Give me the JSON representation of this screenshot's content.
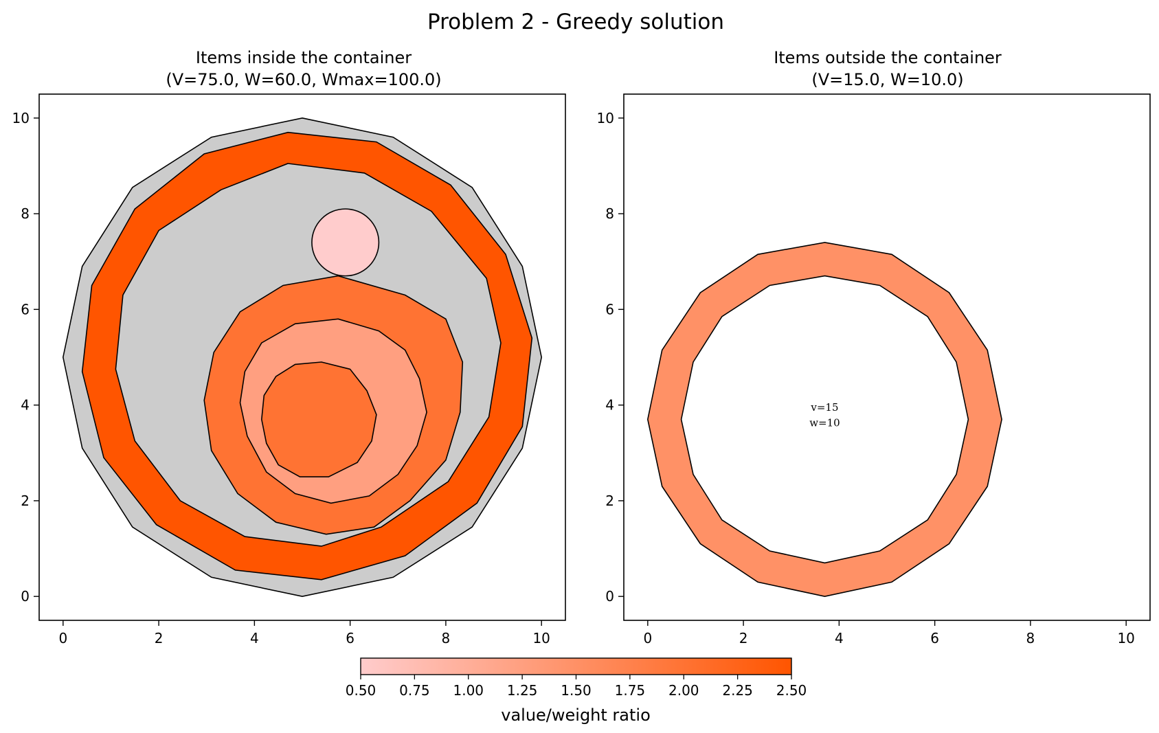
{
  "figure": {
    "suptitle": "Problem 2 - Greedy solution"
  },
  "colorbar": {
    "label": "value/weight ratio",
    "min": 0.5,
    "max": 2.5,
    "ticks": [
      "0.50",
      "0.75",
      "1.00",
      "1.25",
      "1.50",
      "1.75",
      "2.00",
      "2.25",
      "2.50"
    ],
    "colors": {
      "low": "#ffcccc",
      "high": "#ff5500"
    }
  },
  "chart_data": [
    {
      "type": "polygon-plot",
      "title_line1": "Items inside the container",
      "title_line2": "(V=75.0, W=60.0, Wmax=100.0)",
      "xlim": [
        -0.5,
        10.5
      ],
      "ylim": [
        -0.5,
        10.5
      ],
      "xticks": [
        "0",
        "2",
        "4",
        "6",
        "8",
        "10"
      ],
      "yticks": [
        "0",
        "2",
        "4",
        "6",
        "8",
        "10"
      ],
      "container": {
        "color": "#cccccc",
        "points": [
          [
            5.0,
            10.0
          ],
          [
            6.9,
            9.6
          ],
          [
            8.55,
            8.55
          ],
          [
            9.6,
            6.9
          ],
          [
            10.0,
            5.0
          ],
          [
            9.6,
            3.1
          ],
          [
            8.55,
            1.45
          ],
          [
            6.9,
            0.4
          ],
          [
            5.0,
            0.0
          ],
          [
            3.1,
            0.4
          ],
          [
            1.45,
            1.45
          ],
          [
            0.4,
            3.1
          ],
          [
            0.0,
            5.0
          ],
          [
            0.4,
            6.9
          ],
          [
            1.45,
            8.55
          ],
          [
            3.1,
            9.6
          ]
        ]
      },
      "items": [
        {
          "name": "outer-ring",
          "ratio": 2.5,
          "outer": [
            [
              4.7,
              9.7
            ],
            [
              6.55,
              9.5
            ],
            [
              8.1,
              8.6
            ],
            [
              9.25,
              7.15
            ],
            [
              9.8,
              5.4
            ],
            [
              9.6,
              3.55
            ],
            [
              8.65,
              1.95
            ],
            [
              7.15,
              0.85
            ],
            [
              5.4,
              0.35
            ],
            [
              3.6,
              0.55
            ],
            [
              1.95,
              1.5
            ],
            [
              0.85,
              2.9
            ],
            [
              0.4,
              4.7
            ],
            [
              0.6,
              6.5
            ],
            [
              1.5,
              8.1
            ],
            [
              2.95,
              9.25
            ]
          ],
          "inner": [
            [
              4.7,
              9.05
            ],
            [
              6.3,
              8.85
            ],
            [
              7.7,
              8.05
            ],
            [
              8.85,
              6.65
            ],
            [
              9.15,
              5.3
            ],
            [
              8.9,
              3.75
            ],
            [
              8.05,
              2.4
            ],
            [
              6.65,
              1.45
            ],
            [
              5.4,
              1.05
            ],
            [
              3.8,
              1.25
            ],
            [
              2.45,
              2.0
            ],
            [
              1.5,
              3.25
            ],
            [
              1.1,
              4.75
            ],
            [
              1.25,
              6.3
            ],
            [
              2.0,
              7.65
            ],
            [
              3.3,
              8.5
            ]
          ]
        },
        {
          "name": "middle-ring",
          "ratio": 2.0,
          "outer": [
            [
              5.75,
              6.7
            ],
            [
              7.15,
              6.3
            ],
            [
              8.0,
              5.8
            ],
            [
              8.35,
              4.9
            ],
            [
              8.3,
              3.85
            ],
            [
              8.0,
              2.85
            ],
            [
              7.25,
              2.0
            ],
            [
              6.5,
              1.45
            ],
            [
              5.5,
              1.3
            ],
            [
              4.45,
              1.55
            ],
            [
              3.65,
              2.15
            ],
            [
              3.1,
              3.05
            ],
            [
              2.95,
              4.1
            ],
            [
              3.15,
              5.1
            ],
            [
              3.7,
              5.95
            ],
            [
              4.6,
              6.5
            ]
          ]
        },
        {
          "name": "small-ring",
          "ratio": 1.25,
          "outer": [
            [
              5.75,
              5.8
            ],
            [
              6.6,
              5.55
            ],
            [
              7.15,
              5.15
            ],
            [
              7.45,
              4.55
            ],
            [
              7.6,
              3.85
            ],
            [
              7.4,
              3.15
            ],
            [
              7.0,
              2.55
            ],
            [
              6.4,
              2.1
            ],
            [
              5.6,
              1.95
            ],
            [
              4.85,
              2.15
            ],
            [
              4.25,
              2.6
            ],
            [
              3.85,
              3.35
            ],
            [
              3.7,
              4.05
            ],
            [
              3.8,
              4.7
            ],
            [
              4.15,
              5.3
            ],
            [
              4.85,
              5.7
            ]
          ],
          "inner": [
            [
              5.4,
              4.9
            ],
            [
              6.0,
              4.75
            ],
            [
              6.35,
              4.3
            ],
            [
              6.55,
              3.8
            ],
            [
              6.45,
              3.25
            ],
            [
              6.15,
              2.8
            ],
            [
              5.55,
              2.5
            ],
            [
              4.95,
              2.5
            ],
            [
              4.5,
              2.75
            ],
            [
              4.25,
              3.2
            ],
            [
              4.15,
              3.7
            ],
            [
              4.2,
              4.2
            ],
            [
              4.45,
              4.6
            ],
            [
              4.85,
              4.85
            ]
          ]
        },
        {
          "name": "small-circle",
          "ratio": 0.5,
          "circle": {
            "cx": 5.9,
            "cy": 7.4,
            "r": 0.7
          }
        }
      ]
    },
    {
      "type": "polygon-plot",
      "title_line1": "Items outside the container",
      "title_line2": "(V=15.0, W=10.0)",
      "xlim": [
        -0.5,
        10.5
      ],
      "ylim": [
        -0.5,
        10.5
      ],
      "xticks": [
        "0",
        "2",
        "4",
        "6",
        "8",
        "10"
      ],
      "yticks": [
        "0",
        "2",
        "4",
        "6",
        "8",
        "10"
      ],
      "items": [
        {
          "name": "outside-ring",
          "ratio": 1.5,
          "label_v": "v=15",
          "label_w": "w=10",
          "outer": [
            [
              3.7,
              7.4
            ],
            [
              5.1,
              7.15
            ],
            [
              6.3,
              6.35
            ],
            [
              7.1,
              5.15
            ],
            [
              7.4,
              3.7
            ],
            [
              7.1,
              2.3
            ],
            [
              6.3,
              1.1
            ],
            [
              5.1,
              0.3
            ],
            [
              3.7,
              0.0
            ],
            [
              2.3,
              0.3
            ],
            [
              1.1,
              1.1
            ],
            [
              0.3,
              2.3
            ],
            [
              0.0,
              3.7
            ],
            [
              0.3,
              5.15
            ],
            [
              1.1,
              6.35
            ],
            [
              2.3,
              7.15
            ]
          ],
          "inner": [
            [
              3.7,
              6.7
            ],
            [
              4.85,
              6.5
            ],
            [
              5.85,
              5.85
            ],
            [
              6.45,
              4.9
            ],
            [
              6.7,
              3.7
            ],
            [
              6.45,
              2.55
            ],
            [
              5.85,
              1.6
            ],
            [
              4.85,
              0.95
            ],
            [
              3.7,
              0.7
            ],
            [
              2.55,
              0.95
            ],
            [
              1.55,
              1.6
            ],
            [
              0.95,
              2.55
            ],
            [
              0.7,
              3.7
            ],
            [
              0.95,
              4.9
            ],
            [
              1.55,
              5.85
            ],
            [
              2.55,
              6.5
            ]
          ]
        }
      ]
    }
  ]
}
